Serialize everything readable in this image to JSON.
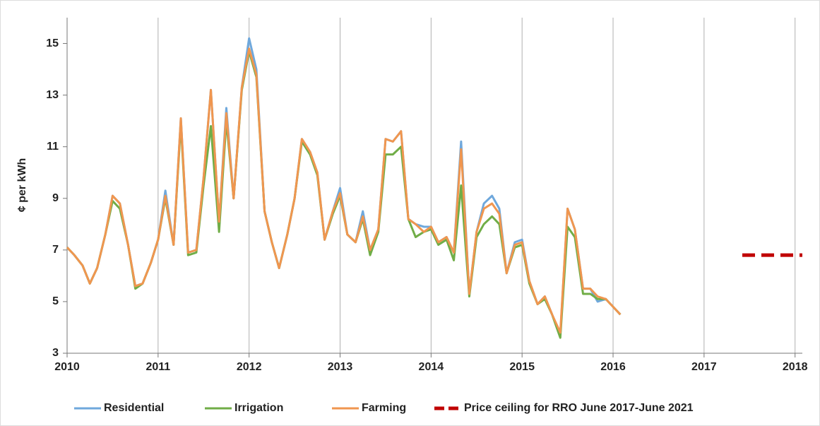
{
  "chart_data": {
    "type": "line",
    "y_label": "¢ per kWh",
    "x": [
      2010,
      2010.08,
      2010.17,
      2010.25,
      2010.33,
      2010.42,
      2010.5,
      2010.58,
      2010.67,
      2010.75,
      2010.83,
      2010.92,
      2011,
      2011.08,
      2011.17,
      2011.25,
      2011.33,
      2011.42,
      2011.5,
      2011.58,
      2011.67,
      2011.75,
      2011.83,
      2011.92,
      2012,
      2012.08,
      2012.17,
      2012.25,
      2012.33,
      2012.42,
      2012.5,
      2012.58,
      2012.67,
      2012.75,
      2012.83,
      2012.92,
      2013,
      2013.08,
      2013.17,
      2013.25,
      2013.33,
      2013.42,
      2013.5,
      2013.58,
      2013.67,
      2013.75,
      2013.83,
      2013.92,
      2014,
      2014.08,
      2014.17,
      2014.25,
      2014.33,
      2014.42,
      2014.5,
      2014.58,
      2014.67,
      2014.75,
      2014.83,
      2014.92,
      2015,
      2015.08,
      2015.17,
      2015.25,
      2015.33,
      2015.42,
      2015.5,
      2015.58,
      2015.67,
      2015.75,
      2015.83,
      2015.92,
      2016,
      2016.08
    ],
    "series": [
      {
        "name": "Residential",
        "color": "#6fa8dc",
        "values": [
          7.1,
          6.8,
          6.4,
          5.7,
          6.3,
          7.6,
          9.1,
          8.8,
          7.2,
          5.6,
          5.7,
          6.5,
          7.4,
          9.3,
          7.2,
          12.1,
          6.9,
          7.0,
          9.8,
          13.2,
          8.1,
          12.5,
          9.0,
          13.3,
          15.2,
          14.0,
          8.5,
          7.3,
          6.3,
          7.6,
          9.0,
          11.3,
          10.8,
          10.0,
          7.4,
          8.5,
          9.4,
          7.6,
          7.3,
          8.5,
          7.0,
          7.8,
          11.3,
          11.2,
          11.6,
          8.2,
          8.0,
          7.9,
          7.9,
          7.3,
          7.5,
          6.9,
          11.2,
          5.3,
          7.7,
          8.8,
          9.1,
          8.6,
          6.1,
          7.3,
          7.4,
          5.8,
          4.9,
          5.2,
          4.5,
          3.7,
          8.6,
          7.8,
          5.5,
          5.5,
          5.0,
          5.1,
          4.8,
          4.5
        ]
      },
      {
        "name": "Irrigation",
        "color": "#70ad47",
        "values": [
          7.1,
          6.8,
          6.4,
          5.7,
          6.3,
          7.6,
          8.9,
          8.6,
          7.2,
          5.5,
          5.7,
          6.5,
          7.4,
          9.0,
          7.2,
          11.9,
          6.8,
          6.9,
          9.5,
          11.8,
          7.7,
          12.0,
          9.0,
          13.2,
          14.7,
          13.7,
          8.5,
          7.3,
          6.3,
          7.6,
          9.0,
          11.2,
          10.7,
          9.9,
          7.4,
          8.4,
          9.1,
          7.6,
          7.3,
          8.2,
          6.8,
          7.7,
          10.7,
          10.7,
          11.0,
          8.2,
          7.5,
          7.7,
          7.8,
          7.2,
          7.4,
          6.6,
          9.5,
          5.2,
          7.5,
          8.0,
          8.3,
          8.0,
          6.1,
          7.1,
          7.2,
          5.7,
          4.9,
          5.1,
          4.5,
          3.6,
          7.9,
          7.5,
          5.3,
          5.3,
          5.1,
          5.1,
          4.8,
          4.5
        ]
      },
      {
        "name": "Farming",
        "color": "#f0964f",
        "values": [
          7.1,
          6.8,
          6.4,
          5.7,
          6.3,
          7.6,
          9.1,
          8.8,
          7.2,
          5.6,
          5.7,
          6.5,
          7.4,
          9.1,
          7.2,
          12.1,
          6.9,
          7.0,
          9.8,
          13.2,
          8.1,
          12.3,
          9.0,
          13.3,
          14.8,
          13.8,
          8.5,
          7.3,
          6.3,
          7.6,
          9.0,
          11.3,
          10.8,
          10.0,
          7.4,
          8.5,
          9.2,
          7.6,
          7.3,
          8.3,
          7.0,
          7.8,
          11.3,
          11.2,
          11.6,
          8.2,
          8.0,
          7.7,
          7.9,
          7.3,
          7.5,
          6.9,
          10.9,
          5.3,
          7.7,
          8.6,
          8.8,
          8.4,
          6.1,
          7.2,
          7.3,
          5.8,
          4.9,
          5.2,
          4.5,
          3.8,
          8.6,
          7.8,
          5.5,
          5.5,
          5.2,
          5.1,
          4.8,
          4.5
        ]
      },
      {
        "name": "Price ceiling for RRO June 2017-June 2021",
        "color": "#c00000",
        "dashed": true,
        "x": [
          2017.42,
          2018.08
        ],
        "values": [
          6.8,
          6.8
        ]
      }
    ],
    "xlim": [
      2010,
      2018.08
    ],
    "xticks": [
      2010,
      2011,
      2012,
      2013,
      2014,
      2015,
      2016,
      2017,
      2018
    ],
    "ylim": [
      3,
      16
    ],
    "yticks": [
      3,
      5,
      7,
      9,
      11,
      13,
      15
    ],
    "grid": "x",
    "legend": "bottom"
  }
}
